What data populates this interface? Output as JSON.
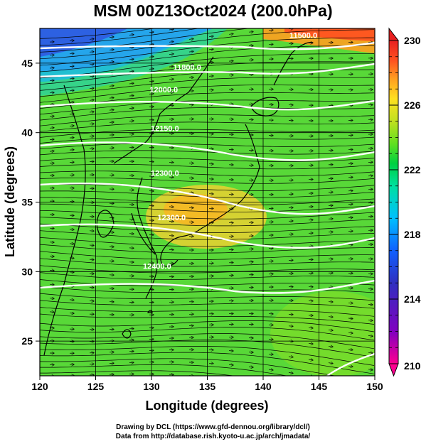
{
  "title": "MSM 00Z13Oct2024 (200.0hPa)",
  "xlabel": "Longitude (degrees)",
  "ylabel": "Latitude  (degrees)",
  "credits": {
    "line1": "Drawing by DCL (https://www.gfd-dennou.org/library/dcl/)",
    "line2": "Data from http://database.rish.kyoto-u.ac.jp/arch/jmadata/"
  },
  "map": {
    "lon_range": [
      120,
      150
    ],
    "lat_range": [
      22.5,
      47.5
    ],
    "lon_ticks": [
      "120",
      "125",
      "130",
      "135",
      "140",
      "145",
      "150"
    ],
    "lat_ticks": [
      "25",
      "30",
      "35",
      "40",
      "45"
    ],
    "background_field": "temperature (shaded)",
    "overlays": [
      "geopotential height contours (white)",
      "wind streamlines",
      "coastlines"
    ],
    "contour_labels": [
      {
        "text": "11500.0",
        "lon": 143.6,
        "lat": 46.8
      },
      {
        "text": "11800.0",
        "lon": 133.2,
        "lat": 44.5
      },
      {
        "text": "12000.0",
        "lon": 131.1,
        "lat": 42.9
      },
      {
        "text": "12150.0",
        "lon": 131.2,
        "lat": 40.1
      },
      {
        "text": "12300.0",
        "lon": 131.2,
        "lat": 36.9
      },
      {
        "text": "12300.0",
        "lon": 131.8,
        "lat": 33.7
      },
      {
        "text": "12400.0",
        "lon": 130.5,
        "lat": 30.2
      }
    ]
  },
  "colorbar": {
    "min": 210,
    "max": 230,
    "tick_labels": [
      "230",
      "226",
      "222",
      "218",
      "214",
      "210"
    ],
    "colors": [
      "#ff0090",
      "#8000c0",
      "#3030c0",
      "#1060ff",
      "#00c0ff",
      "#00e0a0",
      "#00d040",
      "#60e020",
      "#c0e020",
      "#ffe020",
      "#ffa020",
      "#ff5020",
      "#e82020"
    ]
  }
}
